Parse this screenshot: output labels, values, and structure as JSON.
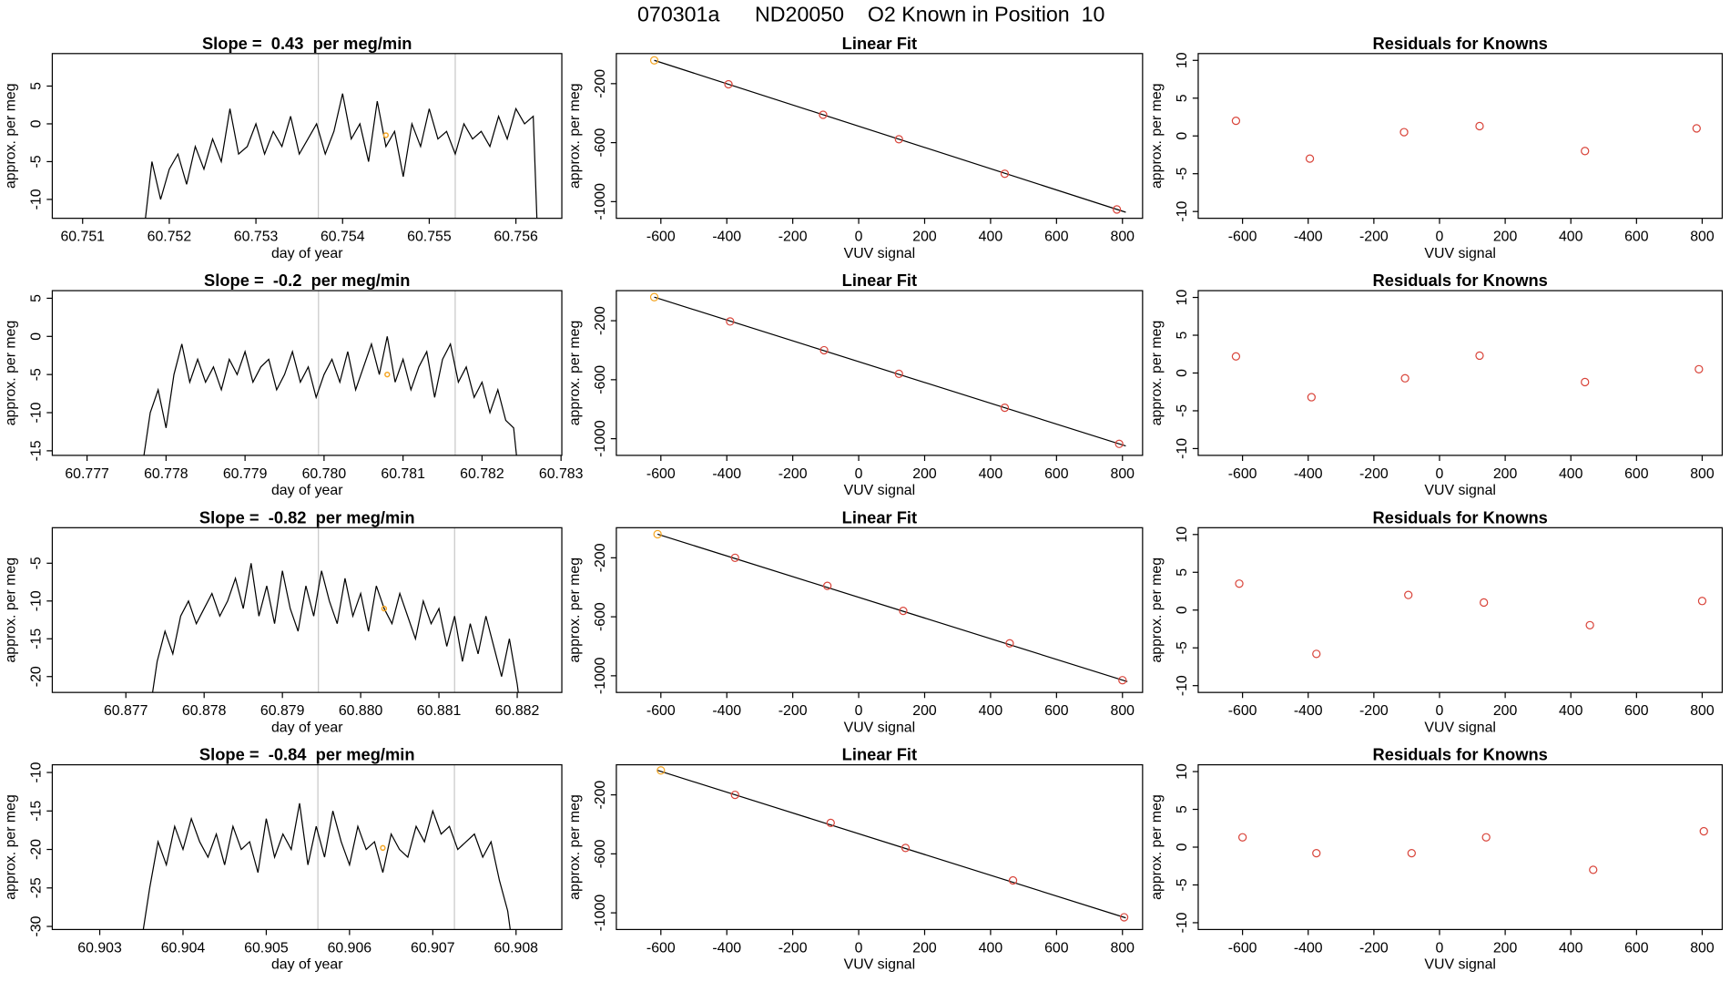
{
  "title": "070301a      ND20050    O2 Known in Position  10",
  "chart_data": [
    {
      "type": "line",
      "title": "Slope =  0.43  per meg/min",
      "xlabel": "day of year",
      "ylabel": "approx. per meg",
      "x": [
        60.7517,
        60.7518,
        60.7519,
        60.752,
        60.7521,
        60.7522,
        60.7523,
        60.7524,
        60.7525,
        60.7526,
        60.7527,
        60.7528,
        60.7529,
        60.753,
        60.7531,
        60.7532,
        60.7533,
        60.7534,
        60.7535,
        60.7536,
        60.7537,
        60.7538,
        60.7539,
        60.754,
        60.7541,
        60.7542,
        60.7543,
        60.7544,
        60.7545,
        60.7546,
        60.7547,
        60.7548,
        60.7549,
        60.755,
        60.7551,
        60.7552,
        60.7553,
        60.7554,
        60.7555,
        60.7556,
        60.7557,
        60.7558,
        60.7559,
        60.756,
        60.7561,
        60.7562,
        60.75625
      ],
      "values": [
        -15,
        -5,
        -10,
        -6,
        -4,
        -8,
        -3,
        -6,
        -2,
        -5,
        2,
        -4,
        -3,
        0,
        -4,
        -1,
        -3,
        1,
        -4,
        -2,
        0,
        -4,
        -1,
        4,
        -2,
        0,
        -5,
        3,
        -3,
        -1,
        -7,
        0,
        -3,
        2,
        -2,
        -1,
        -4,
        0,
        -2,
        -1,
        -3,
        1,
        -2,
        2,
        0,
        1,
        -15
      ],
      "color": "#000000",
      "xlim": [
        60.75065,
        60.75653
      ],
      "xticks": [
        60.751,
        60.752,
        60.753,
        60.754,
        60.755,
        60.756
      ],
      "ylim": [
        -12.5,
        9.3
      ],
      "yticks": [
        -10,
        -5,
        0,
        5
      ],
      "vlines": [
        60.75372,
        60.7553
      ],
      "vline_color": "#c8c8c8",
      "highlight": {
        "x": 60.7545,
        "y": -1.5
      },
      "highlight_color": "#f5a623"
    },
    {
      "type": "scatter",
      "title": "Linear Fit",
      "xlabel": "VUV signal",
      "ylabel": "approx. per meg",
      "x": [
        -620,
        -395,
        -108,
        122,
        443,
        783
      ],
      "values": [
        -42,
        -204,
        -411,
        -577,
        -811,
        -1053
      ],
      "point_colors": [
        "#f5a623",
        "#d9453b",
        "#d9453b",
        "#d9453b",
        "#d9453b",
        "#d9453b"
      ],
      "fit": {
        "x": [
          -620,
          810
        ],
        "values": [
          -42,
          -1072
        ]
      },
      "fit_color": "#000000",
      "xlim": [
        -735,
        861
      ],
      "xticks": [
        -600,
        -400,
        -200,
        0,
        200,
        400,
        600,
        800
      ],
      "ylim": [
        -1113,
        4
      ],
      "yticks": [
        -1000,
        -600,
        -200
      ]
    },
    {
      "type": "scatter",
      "title": "Residuals for Knowns",
      "xlabel": "VUV signal",
      "ylabel": "approx. per meg",
      "x": [
        -620,
        -395,
        -108,
        122,
        443,
        783
      ],
      "values": [
        2,
        -3,
        0.5,
        1.3,
        -2,
        1
      ],
      "color": "#d9453b",
      "xlim": [
        -735,
        861
      ],
      "xticks": [
        -600,
        -400,
        -200,
        0,
        200,
        400,
        600,
        800
      ],
      "ylim": [
        -10.9,
        10.9
      ],
      "yticks": [
        -10,
        -5,
        0,
        5,
        10
      ]
    },
    {
      "type": "line",
      "title": "Slope =  -0.2  per meg/min",
      "xlabel": "day of year",
      "ylabel": "approx. per meg",
      "x": [
        60.7777,
        60.7778,
        60.7779,
        60.778,
        60.7781,
        60.7782,
        60.7783,
        60.7784,
        60.7785,
        60.7786,
        60.7787,
        60.7788,
        60.7789,
        60.779,
        60.7791,
        60.7792,
        60.7793,
        60.7794,
        60.7795,
        60.7796,
        60.7797,
        60.7798,
        60.7799,
        60.78,
        60.7801,
        60.7802,
        60.7803,
        60.7804,
        60.7805,
        60.7806,
        60.7807,
        60.7808,
        60.7809,
        60.781,
        60.7811,
        60.7812,
        60.7813,
        60.7814,
        60.7815,
        60.7816,
        60.7817,
        60.7818,
        60.7819,
        60.782,
        60.7821,
        60.7822,
        60.7823,
        60.7824,
        60.78245
      ],
      "values": [
        -17,
        -10,
        -7,
        -12,
        -5,
        -1,
        -6,
        -3,
        -6,
        -4,
        -7,
        -3,
        -5,
        -2,
        -6,
        -4,
        -3,
        -7,
        -5,
        -2,
        -6,
        -4,
        -8,
        -5,
        -3,
        -6,
        -2,
        -7,
        -4,
        -1,
        -5,
        0,
        -6,
        -3,
        -7,
        -4,
        -2,
        -8,
        -3,
        -1,
        -6,
        -4,
        -8,
        -6,
        -10,
        -7,
        -11,
        -12,
        -17
      ],
      "color": "#000000",
      "xlim": [
        60.77656,
        60.78301
      ],
      "xticks": [
        60.777,
        60.778,
        60.779,
        {
          "value": 60.78,
          "label": "60.780"
        },
        60.781,
        60.782,
        60.783
      ],
      "ylim": [
        -15.6,
        6
      ],
      "yticks": [
        -15,
        -10,
        -5,
        0,
        5
      ],
      "vlines": [
        60.77993,
        60.78166
      ],
      "vline_color": "#c8c8c8",
      "highlight": {
        "x": 60.7808,
        "y": -5
      },
      "highlight_color": "#f5a623"
    },
    {
      "type": "scatter",
      "title": "Linear Fit",
      "xlabel": "VUV signal",
      "ylabel": "approx. per meg",
      "x": [
        -620,
        -390,
        -105,
        122,
        443,
        790
      ],
      "values": [
        -40,
        -205,
        -400,
        -560,
        -790,
        -1035
      ],
      "point_colors": [
        "#f5a623",
        "#d9453b",
        "#d9453b",
        "#d9453b",
        "#d9453b",
        "#d9453b"
      ],
      "fit": {
        "x": [
          -620,
          810
        ],
        "values": [
          -40,
          -1049
        ]
      },
      "fit_color": "#000000",
      "xlim": [
        -735,
        861
      ],
      "xticks": [
        -600,
        -400,
        -200,
        0,
        200,
        400,
        600,
        800
      ],
      "ylim": [
        -1113,
        4
      ],
      "yticks": [
        -1000,
        -600,
        -200
      ]
    },
    {
      "type": "scatter",
      "title": "Residuals for Knowns",
      "xlabel": "VUV signal",
      "ylabel": "approx. per meg",
      "x": [
        -620,
        -390,
        -105,
        122,
        443,
        790
      ],
      "values": [
        2.2,
        -3.2,
        -0.7,
        2.3,
        -1.2,
        0.5
      ],
      "color": "#d9453b",
      "xlim": [
        -735,
        861
      ],
      "xticks": [
        -600,
        -400,
        -200,
        0,
        200,
        400,
        600,
        800
      ],
      "ylim": [
        -10.9,
        10.9
      ],
      "yticks": [
        -10,
        -5,
        0,
        5,
        10
      ]
    },
    {
      "type": "line",
      "title": "Slope =  -0.82  per meg/min",
      "xlabel": "day of year",
      "ylabel": "approx. per meg",
      "x": [
        60.8773,
        60.8774,
        60.8775,
        60.8776,
        60.8777,
        60.8778,
        60.8779,
        60.878,
        60.8781,
        60.8782,
        60.8783,
        60.8784,
        60.8785,
        60.8786,
        60.8787,
        60.8788,
        60.8789,
        60.879,
        60.8791,
        60.8792,
        60.8793,
        60.8794,
        60.8795,
        60.8796,
        60.8797,
        60.8798,
        60.8799,
        60.88,
        60.8801,
        60.8802,
        60.8803,
        60.8804,
        60.8805,
        60.8806,
        60.8807,
        60.8808,
        60.8809,
        60.881,
        60.8811,
        60.8812,
        60.8813,
        60.8814,
        60.8815,
        60.8816,
        60.8817,
        60.8818,
        60.8819,
        60.882,
        60.88205
      ],
      "values": [
        -25,
        -18,
        -14,
        -17,
        -12,
        -10,
        -13,
        -11,
        -9,
        -12,
        -10,
        -7,
        -11,
        -5,
        -12,
        -8,
        -13,
        -6,
        -11,
        -14,
        -8,
        -12,
        -6,
        -10,
        -13,
        -7,
        -12,
        -9,
        -14,
        -8,
        -11,
        -13,
        -9,
        -12,
        -15,
        -10,
        -13,
        -11,
        -16,
        -12,
        -18,
        -13,
        -17,
        -12,
        -16,
        -20,
        -15,
        -21,
        -25
      ],
      "color": "#000000",
      "xlim": [
        60.87606,
        60.88257
      ],
      "xticks": [
        60.877,
        60.878,
        60.879,
        {
          "value": 60.88,
          "label": "60.880"
        },
        60.881,
        60.882
      ],
      "ylim": [
        -22.1,
        -0.3
      ],
      "yticks": [
        -20,
        -15,
        -10,
        -5
      ],
      "vlines": [
        60.87946,
        60.8812
      ],
      "vline_color": "#c8c8c8",
      "highlight": {
        "x": 60.8803,
        "y": -11
      },
      "highlight_color": "#f5a623"
    },
    {
      "type": "scatter",
      "title": "Linear Fit",
      "xlabel": "VUV signal",
      "ylabel": "approx. per meg",
      "x": [
        -610,
        -375,
        -95,
        135,
        458,
        800
      ],
      "values": [
        -40,
        -200,
        -390,
        -560,
        -780,
        -1030
      ],
      "point_colors": [
        "#f5a623",
        "#d9453b",
        "#d9453b",
        "#d9453b",
        "#d9453b",
        "#d9453b"
      ],
      "fit": {
        "x": [
          -610,
          815
        ],
        "values": [
          -40,
          -1040
        ]
      },
      "fit_color": "#000000",
      "xlim": [
        -735,
        861
      ],
      "xticks": [
        -600,
        -400,
        -200,
        0,
        200,
        400,
        600,
        800
      ],
      "ylim": [
        -1113,
        4
      ],
      "yticks": [
        -1000,
        -600,
        -200
      ]
    },
    {
      "type": "scatter",
      "title": "Residuals for Knowns",
      "xlabel": "VUV signal",
      "ylabel": "approx. per meg",
      "x": [
        -610,
        -375,
        -95,
        135,
        458,
        800
      ],
      "values": [
        3.5,
        -5.8,
        2,
        1,
        -2,
        1.2
      ],
      "color": "#d9453b",
      "xlim": [
        -735,
        861
      ],
      "xticks": [
        -600,
        -400,
        -200,
        0,
        200,
        400,
        600,
        800
      ],
      "ylim": [
        -10.9,
        10.9
      ],
      "yticks": [
        -10,
        -5,
        0,
        5,
        10
      ]
    },
    {
      "type": "line",
      "title": "Slope =  -0.84  per meg/min",
      "xlabel": "day of year",
      "ylabel": "approx. per meg",
      "x": [
        60.9035,
        60.9036,
        60.9037,
        60.9038,
        60.9039,
        60.904,
        60.9041,
        60.9042,
        60.9043,
        60.9044,
        60.9045,
        60.9046,
        60.9047,
        60.9048,
        60.9049,
        60.905,
        60.9051,
        60.9052,
        60.9053,
        60.9054,
        60.9055,
        60.9056,
        60.9057,
        60.9058,
        60.9059,
        60.906,
        60.9061,
        60.9062,
        60.9063,
        60.9064,
        60.9065,
        60.9066,
        60.9067,
        60.9068,
        60.9069,
        60.907,
        60.9071,
        60.9072,
        60.9073,
        60.9074,
        60.9075,
        60.9076,
        60.9077,
        60.9078,
        60.9079,
        60.90795
      ],
      "values": [
        -32,
        -25,
        -19,
        -22,
        -17,
        -20,
        -16,
        -19,
        -21,
        -18,
        -22,
        -17,
        -20,
        -19,
        -23,
        -16,
        -21,
        -18,
        -20,
        -14,
        -22,
        -17,
        -21,
        -15,
        -19,
        -22,
        -17,
        -20,
        -19,
        -23,
        -18,
        -20,
        -21,
        -17,
        -19,
        -15,
        -18,
        -17,
        -20,
        -19,
        -18,
        -21,
        -19,
        -24,
        -28,
        -32
      ],
      "color": "#000000",
      "xlim": [
        60.90243,
        60.90855
      ],
      "xticks": [
        60.903,
        60.904,
        60.905,
        60.906,
        60.907,
        60.908
      ],
      "ylim": [
        -30.4,
        -9.0
      ],
      "yticks": [
        -30,
        -25,
        -20,
        -15,
        -10
      ],
      "vlines": [
        60.90562,
        60.90726
      ],
      "vline_color": "#c8c8c8",
      "highlight": {
        "x": 60.9064,
        "y": -19.8
      },
      "highlight_color": "#f5a623"
    },
    {
      "type": "scatter",
      "title": "Linear Fit",
      "xlabel": "VUV signal",
      "ylabel": "approx. per meg",
      "x": [
        -600,
        -375,
        -85,
        142,
        468,
        805
      ],
      "values": [
        -34,
        -200,
        -390,
        -560,
        -780,
        -1030
      ],
      "point_colors": [
        "#f5a623",
        "#d9453b",
        "#d9453b",
        "#d9453b",
        "#d9453b",
        "#d9453b"
      ],
      "fit": {
        "x": [
          -610,
          810
        ],
        "values": [
          -34,
          -1034
        ]
      },
      "fit_color": "#000000",
      "xlim": [
        -735,
        861
      ],
      "xticks": [
        -600,
        -400,
        -200,
        0,
        200,
        400,
        600,
        800
      ],
      "ylim": [
        -1113,
        4
      ],
      "yticks": [
        -1000,
        -600,
        -200
      ]
    },
    {
      "type": "scatter",
      "title": "Residuals for Knowns",
      "xlabel": "VUV signal",
      "ylabel": "approx. per meg",
      "x": [
        -600,
        -375,
        -85,
        142,
        468,
        805
      ],
      "values": [
        1.3,
        -0.8,
        -0.8,
        1.3,
        -3,
        2.1
      ],
      "color": "#d9453b",
      "xlim": [
        -735,
        861
      ],
      "xticks": [
        -600,
        -400,
        -200,
        0,
        200,
        400,
        600,
        800
      ],
      "ylim": [
        -10.9,
        10.9
      ],
      "yticks": [
        -10,
        -5,
        0,
        5,
        10
      ]
    }
  ]
}
